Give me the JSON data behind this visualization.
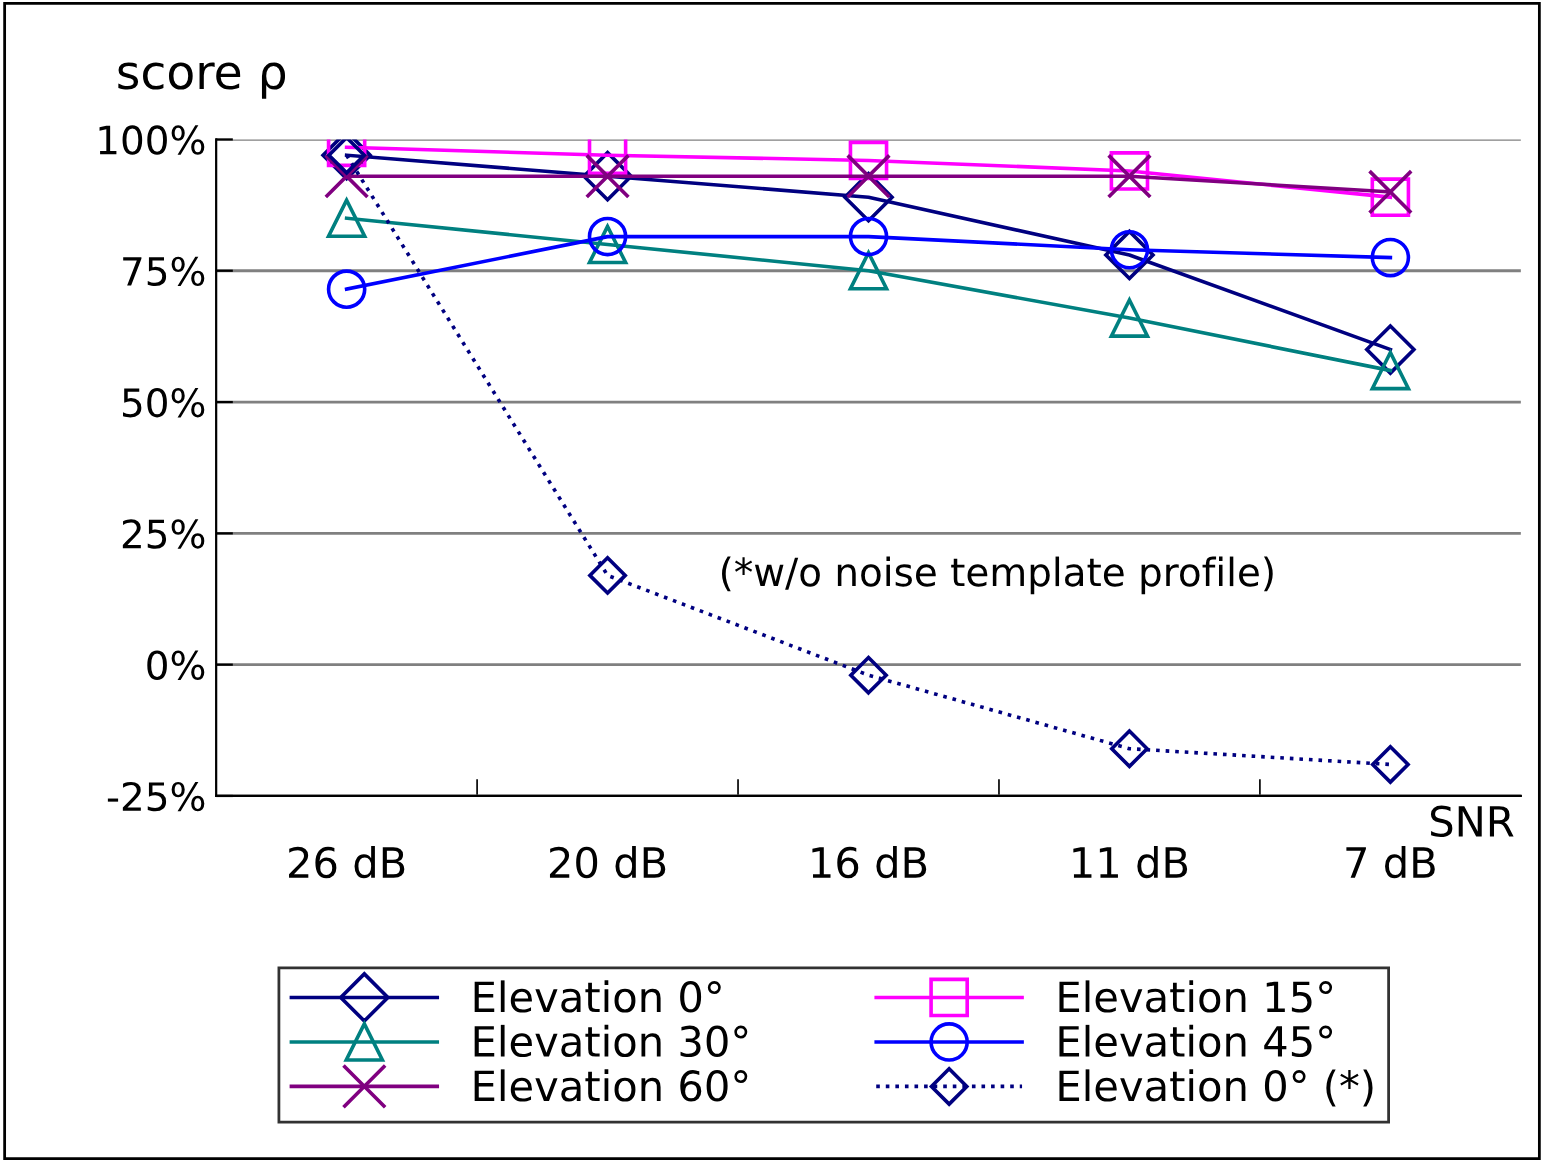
{
  "chart_data": {
    "type": "line",
    "ylabel": "score ρ",
    "xlabel": "SNR",
    "categories": [
      "26 dB",
      "20 dB",
      "16 dB",
      "11 dB",
      "7 dB"
    ],
    "series": [
      {
        "name": "Elevation 0°",
        "color": "#000080",
        "marker": "diamond",
        "line_style": "solid",
        "values": [
          97,
          93,
          89,
          78,
          60
        ]
      },
      {
        "name": "Elevation 15°",
        "color": "#ff00ff",
        "marker": "square",
        "line_style": "solid",
        "values": [
          98.5,
          97,
          96,
          94,
          89
        ]
      },
      {
        "name": "Elevation 30°",
        "color": "#008080",
        "marker": "triangle",
        "line_style": "solid",
        "values": [
          85,
          80,
          75,
          66,
          56
        ]
      },
      {
        "name": "Elevation 45°",
        "color": "#0000ff",
        "marker": "circle",
        "line_style": "solid",
        "values": [
          71.5,
          81.5,
          81.5,
          79,
          77.5
        ]
      },
      {
        "name": "Elevation 60°",
        "color": "#800080",
        "marker": "cross",
        "line_style": "solid",
        "values": [
          93,
          93,
          93,
          93,
          90
        ]
      },
      {
        "name": "Elevation 0° (*)",
        "color": "#000080",
        "marker": "diamond",
        "line_style": "dotted",
        "values": [
          97,
          17,
          -2,
          -16,
          -19
        ]
      }
    ],
    "ylim": [
      -25,
      100
    ],
    "yticks": [
      {
        "value": -25,
        "label": "-25%"
      },
      {
        "value": 0,
        "label": "0%"
      },
      {
        "value": 25,
        "label": "25%"
      },
      {
        "value": 50,
        "label": "50%"
      },
      {
        "value": 75,
        "label": "75%"
      },
      {
        "value": 100,
        "label": "100%"
      }
    ],
    "grid": "y",
    "legend": "bottom",
    "annotations": [
      {
        "text": "(*w/o noise template profile)",
        "x": "20 dB",
        "y": 17
      }
    ]
  }
}
